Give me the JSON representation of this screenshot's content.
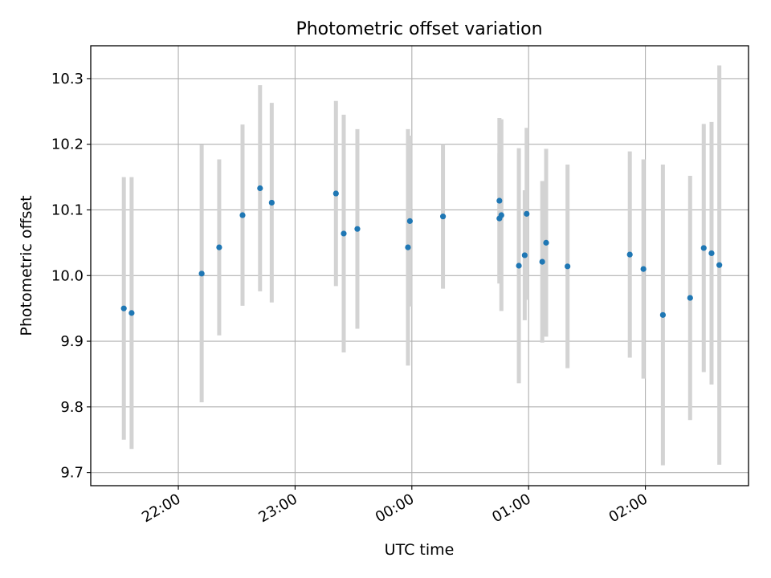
{
  "chart_data": {
    "type": "scatter",
    "title": "Photometric offset variation",
    "xlabel": "UTC time",
    "ylabel": "Photometric offset",
    "grid": true,
    "legend": "none",
    "x_ticks": [
      "22:00",
      "23:00",
      "00:00",
      "01:00",
      "02:00"
    ],
    "y_ticks": [
      "9.7",
      "9.8",
      "9.9",
      "10.0",
      "10.1",
      "10.2",
      "10.3"
    ],
    "xlim": [
      "21:15",
      "02:53"
    ],
    "ylim": [
      9.68,
      10.35
    ],
    "marker_color": "#1f77b4",
    "errorbar_color": "#d3d3d3",
    "points": [
      {
        "x": "21:32",
        "y": 9.95,
        "err": 0.2
      },
      {
        "x": "21:36",
        "y": 9.943,
        "err": 0.207
      },
      {
        "x": "22:12",
        "y": 10.003,
        "err": 0.196
      },
      {
        "x": "22:21",
        "y": 10.043,
        "err": 0.134
      },
      {
        "x": "22:33",
        "y": 10.092,
        "err": 0.138
      },
      {
        "x": "22:42",
        "y": 10.133,
        "err": 0.157
      },
      {
        "x": "22:48",
        "y": 10.111,
        "err": 0.152
      },
      {
        "x": "23:21",
        "y": 10.125,
        "err": 0.141
      },
      {
        "x": "23:25",
        "y": 10.064,
        "err": 0.181
      },
      {
        "x": "23:32",
        "y": 10.071,
        "err": 0.152
      },
      {
        "x": "23:58",
        "y": 10.043,
        "err": 0.18
      },
      {
        "x": "23:59",
        "y": 10.083,
        "err": 0.13
      },
      {
        "x": "00:16",
        "y": 10.09,
        "err": 0.11
      },
      {
        "x": "00:45",
        "y": 10.114,
        "err": 0.126
      },
      {
        "x": "00:45",
        "y": 10.087,
        "err": 0.099
      },
      {
        "x": "00:46",
        "y": 10.092,
        "err": 0.146
      },
      {
        "x": "00:55",
        "y": 10.015,
        "err": 0.179
      },
      {
        "x": "00:58",
        "y": 10.031,
        "err": 0.099
      },
      {
        "x": "00:59",
        "y": 10.094,
        "err": 0.131
      },
      {
        "x": "01:07",
        "y": 10.021,
        "err": 0.123
      },
      {
        "x": "01:09",
        "y": 10.05,
        "err": 0.143
      },
      {
        "x": "01:20",
        "y": 10.014,
        "err": 0.155
      },
      {
        "x": "01:52",
        "y": 10.032,
        "err": 0.157
      },
      {
        "x": "01:59",
        "y": 10.01,
        "err": 0.167
      },
      {
        "x": "02:09",
        "y": 9.94,
        "err": 0.229
      },
      {
        "x": "02:23",
        "y": 9.966,
        "err": 0.186
      },
      {
        "x": "02:30",
        "y": 10.042,
        "err": 0.189
      },
      {
        "x": "02:34",
        "y": 10.034,
        "err": 0.2
      },
      {
        "x": "02:38",
        "y": 10.016,
        "err": 0.304
      }
    ]
  }
}
